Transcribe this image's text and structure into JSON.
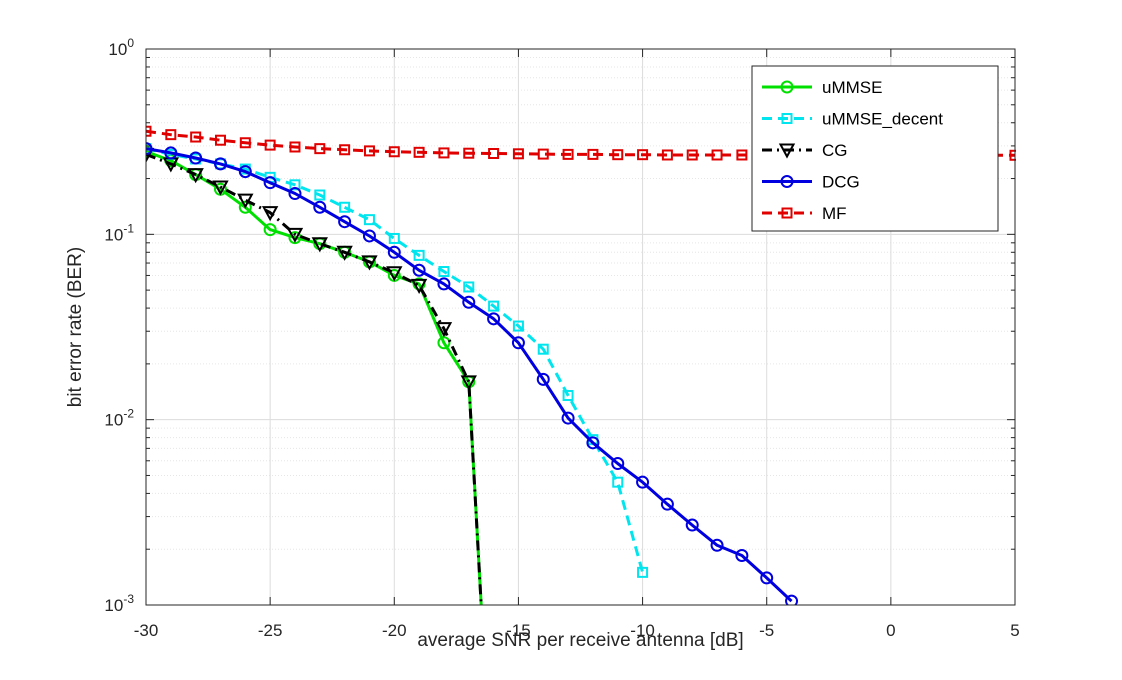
{
  "chart_data": {
    "type": "line",
    "title": "",
    "xlabel": "average SNR per receive antenna [dB]",
    "ylabel": "bit error rate (BER)",
    "xlim": [
      -30,
      5
    ],
    "ylim": [
      0.001,
      1
    ],
    "yscale": "log",
    "grid": true,
    "minor_grid": true,
    "legend_position": "top-right",
    "xticks": [
      -30,
      -25,
      -20,
      -15,
      -10,
      -5,
      0,
      5
    ],
    "xtick_labels": [
      "-30",
      "-25",
      "-20",
      "-15",
      "-10",
      "-5",
      "0",
      "5"
    ],
    "yticks": [
      0.001,
      0.01,
      0.1,
      1
    ],
    "ytick_labels": [
      {
        "base": "10",
        "exp": "-3"
      },
      {
        "base": "10",
        "exp": "-2"
      },
      {
        "base": "10",
        "exp": "-1"
      },
      {
        "base": "10",
        "exp": "0"
      }
    ],
    "series": [
      {
        "name": "uMMSE",
        "color": "#00e000",
        "dash": "solid",
        "marker": "circle",
        "marker_every": 1,
        "x": [
          -30,
          -29,
          -28,
          -27,
          -26,
          -25,
          -24,
          -23,
          -22,
          -21,
          -20,
          -19,
          -18,
          -17,
          -16.5
        ],
        "y": [
          0.28,
          0.25,
          0.21,
          0.175,
          0.14,
          0.106,
          0.096,
          0.089,
          0.08,
          0.071,
          0.06,
          0.054,
          0.026,
          0.016,
          0.001
        ]
      },
      {
        "name": "uMMSE_decent",
        "color": "#00e5ee",
        "dash": "dash",
        "marker": "square",
        "marker_every": 1,
        "x": [
          -30,
          -29,
          -28,
          -27,
          -26,
          -25,
          -24,
          -23,
          -22,
          -21,
          -20,
          -19,
          -18,
          -17,
          -16,
          -15,
          -14,
          -13,
          -12,
          -11,
          -10
        ],
        "y": [
          0.29,
          0.27,
          0.255,
          0.24,
          0.225,
          0.203,
          0.185,
          0.163,
          0.14,
          0.12,
          0.095,
          0.077,
          0.063,
          0.052,
          0.041,
          0.032,
          0.024,
          0.0135,
          0.0078,
          0.0046,
          0.0015
        ]
      },
      {
        "name": "CG",
        "color": "#000000",
        "dash": "dashdot",
        "marker": "triangle-down",
        "marker_every": 1,
        "x": [
          -30,
          -29,
          -28,
          -27,
          -26,
          -25,
          -24,
          -23,
          -22,
          -21,
          -20,
          -19,
          -18,
          -17,
          -16.5
        ],
        "y": [
          0.27,
          0.24,
          0.21,
          0.18,
          0.153,
          0.131,
          0.1,
          0.089,
          0.08,
          0.071,
          0.062,
          0.053,
          0.031,
          0.016,
          0.001
        ]
      },
      {
        "name": "DCG",
        "color": "#0000e0",
        "dash": "solid",
        "marker": "circle",
        "marker_every": 1,
        "x": [
          -30,
          -29,
          -28,
          -27,
          -26,
          -25,
          -24,
          -23,
          -22,
          -21,
          -20,
          -19,
          -18,
          -17,
          -16,
          -15,
          -14,
          -13,
          -12,
          -11,
          -10,
          -9,
          -8,
          -7,
          -6,
          -5,
          -4
        ],
        "y": [
          0.29,
          0.275,
          0.258,
          0.24,
          0.218,
          0.19,
          0.166,
          0.14,
          0.117,
          0.098,
          0.08,
          0.064,
          0.054,
          0.043,
          0.035,
          0.026,
          0.0165,
          0.0102,
          0.0075,
          0.0058,
          0.0046,
          0.0035,
          0.0027,
          0.0021,
          0.00185,
          0.0014,
          0.00105
        ]
      },
      {
        "name": "MF",
        "color": "#e00000",
        "dash": "dash",
        "marker": "square",
        "marker_every": 1,
        "x": [
          -30,
          -29,
          -28,
          -27,
          -26,
          -25,
          -24,
          -23,
          -22,
          -21,
          -20,
          -19,
          -18,
          -17,
          -16,
          -15,
          -14,
          -13,
          -12,
          -11,
          -10,
          -9,
          -8,
          -7,
          -6,
          -5,
          -4,
          -3,
          -2,
          -1,
          0,
          1,
          2,
          3,
          4,
          5
        ],
        "y": [
          0.36,
          0.345,
          0.335,
          0.322,
          0.312,
          0.303,
          0.296,
          0.29,
          0.286,
          0.282,
          0.279,
          0.277,
          0.275,
          0.274,
          0.273,
          0.272,
          0.271,
          0.27,
          0.27,
          0.269,
          0.269,
          0.268,
          0.268,
          0.268,
          0.268,
          0.267,
          0.267,
          0.267,
          0.267,
          0.267,
          0.267,
          0.267,
          0.267,
          0.267,
          0.267,
          0.267
        ]
      }
    ]
  }
}
